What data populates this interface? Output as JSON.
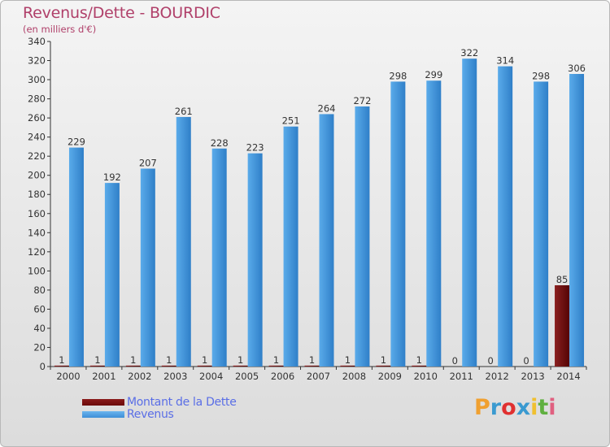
{
  "chart_data": {
    "type": "bar",
    "title": "Revenus/Dette - BOURDIC",
    "subtitle": "(en milliers d'€)",
    "categories": [
      "2000",
      "2001",
      "2002",
      "2003",
      "2004",
      "2005",
      "2006",
      "2007",
      "2008",
      "2009",
      "2010",
      "2011",
      "2012",
      "2013",
      "2014"
    ],
    "series": [
      {
        "name": "Montant de la Dette",
        "color": "#6b0a0a",
        "values": [
          1,
          1,
          1,
          1,
          1,
          1,
          1,
          1,
          1,
          1,
          1,
          0,
          0,
          0,
          85
        ]
      },
      {
        "name": "Revenus",
        "color": "#3e8fd6",
        "values": [
          229,
          192,
          207,
          261,
          228,
          223,
          251,
          264,
          272,
          298,
          299,
          322,
          314,
          298,
          306
        ]
      }
    ],
    "ylim": [
      0,
      340
    ],
    "ytick_step": 20,
    "grid": false,
    "legend_position": "bottom-left"
  },
  "logo": {
    "text": "Proxiti",
    "letters": [
      "P",
      "r",
      "o",
      "x",
      "i",
      "t",
      "i"
    ],
    "colors": [
      "#f0a030",
      "#3a9ad0",
      "#e03030",
      "#3a9ad0",
      "#f0c030",
      "#60b040",
      "#e06080"
    ]
  }
}
